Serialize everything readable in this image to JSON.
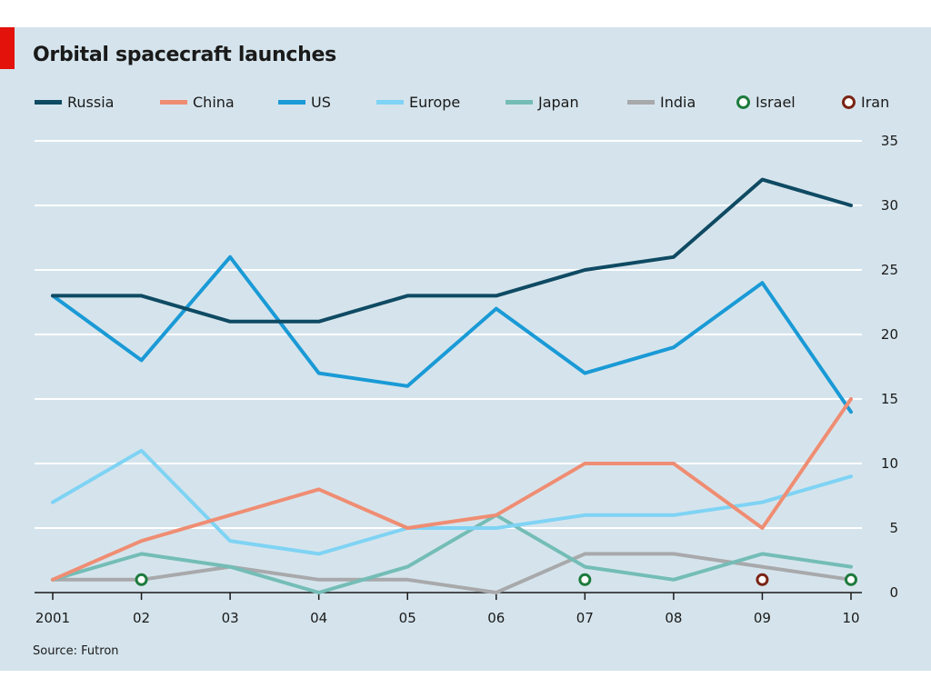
{
  "chart_data": {
    "type": "line",
    "title": "Orbital spacecraft launches",
    "source": "Source: Futron",
    "x_labels": [
      "2001",
      "02",
      "03",
      "04",
      "05",
      "06",
      "07",
      "08",
      "09",
      "10"
    ],
    "x": [
      2001,
      2002,
      2003,
      2004,
      2005,
      2006,
      2007,
      2008,
      2009,
      2010
    ],
    "ylim": [
      0,
      35
    ],
    "yticks": [
      0,
      5,
      10,
      15,
      20,
      25,
      30,
      35
    ],
    "y_axis_side": "right",
    "grid": true,
    "legend_placement": "top",
    "series": [
      {
        "name": "Russia",
        "color": "#0f4a63",
        "values": [
          23,
          23,
          21,
          21,
          23,
          23,
          25,
          26,
          32,
          30
        ]
      },
      {
        "name": "China",
        "color": "#ef8d73",
        "values": [
          1,
          4,
          6,
          8,
          5,
          6,
          10,
          10,
          5,
          15
        ]
      },
      {
        "name": "US",
        "color": "#1a9ad6",
        "values": [
          23,
          18,
          26,
          17,
          16,
          22,
          17,
          19,
          24,
          14
        ]
      },
      {
        "name": "Europe",
        "color": "#7fd3f4",
        "values": [
          7,
          11,
          4,
          3,
          5,
          5,
          6,
          6,
          7,
          9
        ]
      },
      {
        "name": "Japan",
        "color": "#74bdb7",
        "values": [
          1,
          3,
          2,
          0,
          2,
          6,
          2,
          1,
          3,
          2
        ]
      },
      {
        "name": "India",
        "color": "#a8a9ab",
        "values": [
          1,
          1,
          2,
          1,
          1,
          0,
          3,
          3,
          2,
          1
        ]
      }
    ],
    "markers": [
      {
        "name": "Israel",
        "color": "#1d7a3c",
        "points": [
          {
            "x": 2002,
            "y": 1
          },
          {
            "x": 2007,
            "y": 1
          },
          {
            "x": 2010,
            "y": 1
          }
        ]
      },
      {
        "name": "Iran",
        "color": "#7a2415",
        "points": [
          {
            "x": 2009,
            "y": 1
          }
        ]
      }
    ]
  }
}
